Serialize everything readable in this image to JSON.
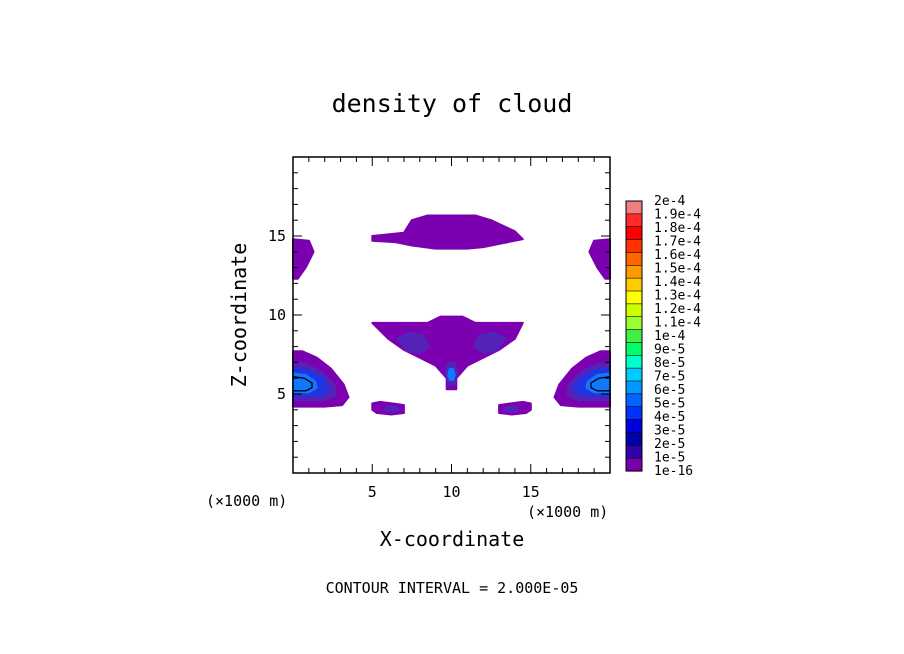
{
  "chart_data": {
    "type": "heatmap",
    "title": "density of cloud",
    "xlabel": "X-coordinate",
    "ylabel": "Z-coordinate",
    "x_unit": "(×1000 m)",
    "y_unit": "(×1000 m)",
    "xlim": [
      0,
      20
    ],
    "ylim": [
      0,
      20
    ],
    "x_ticks": [
      5,
      10,
      15
    ],
    "y_ticks": [
      5,
      10,
      15
    ],
    "footer": "CONTOUR INTERVAL = 2.000E-05",
    "colorbar": {
      "labels": [
        "2e-4",
        "1.9e-4",
        "1.8e-4",
        "1.7e-4",
        "1.6e-4",
        "1.5e-4",
        "1.4e-4",
        "1.3e-4",
        "1.2e-4",
        "1.1e-4",
        "1e-4",
        "9e-5",
        "8e-5",
        "7e-5",
        "6e-5",
        "5e-5",
        "4e-5",
        "3e-5",
        "2e-5",
        "1e-5",
        "1e-16"
      ],
      "colors": [
        "#f08080",
        "#ff2a2a",
        "#ff0000",
        "#ff3300",
        "#ff6600",
        "#ff9900",
        "#ffcc00",
        "#ffff00",
        "#ccff00",
        "#99ff33",
        "#44ee44",
        "#00ff66",
        "#00ffcc",
        "#00ccff",
        "#0099ff",
        "#0066ff",
        "#0033ff",
        "#0000dd",
        "#0000aa",
        "#3300aa",
        "#7700aa"
      ]
    },
    "regions": [
      {
        "name": "upper-center-cloud",
        "level": 0,
        "points": [
          [
            7.0,
            15.2
          ],
          [
            7.5,
            16.0
          ],
          [
            8.5,
            16.3
          ],
          [
            11.5,
            16.3
          ],
          [
            12.5,
            16.0
          ],
          [
            14.0,
            15.3
          ],
          [
            14.5,
            14.8
          ],
          [
            13.0,
            14.5
          ],
          [
            12.0,
            14.3
          ],
          [
            11.0,
            14.2
          ],
          [
            9.0,
            14.2
          ],
          [
            7.5,
            14.4
          ],
          [
            6.5,
            14.6
          ],
          [
            5.0,
            14.7
          ],
          [
            5.0,
            15.0
          ],
          [
            7.0,
            15.2
          ]
        ]
      },
      {
        "name": "upper-left-edge",
        "level": 0,
        "points": [
          [
            0,
            14.8
          ],
          [
            1.0,
            14.7
          ],
          [
            1.3,
            14.0
          ],
          [
            0.8,
            13.0
          ],
          [
            0.3,
            12.3
          ],
          [
            0,
            12.3
          ]
        ]
      },
      {
        "name": "upper-right-edge",
        "level": 0,
        "points": [
          [
            20,
            14.8
          ],
          [
            19.0,
            14.7
          ],
          [
            18.7,
            14.0
          ],
          [
            19.2,
            13.0
          ],
          [
            19.7,
            12.3
          ],
          [
            20,
            12.3
          ]
        ]
      },
      {
        "name": "middle-cloud",
        "level": 0,
        "points": [
          [
            5.0,
            9.5
          ],
          [
            8.5,
            9.5
          ],
          [
            9.3,
            9.9
          ],
          [
            10.7,
            9.9
          ],
          [
            11.5,
            9.5
          ],
          [
            14.5,
            9.5
          ],
          [
            14.0,
            8.5
          ],
          [
            13.0,
            7.8
          ],
          [
            12.0,
            7.3
          ],
          [
            11.0,
            6.8
          ],
          [
            10.3,
            6.0
          ],
          [
            10.3,
            5.3
          ],
          [
            9.7,
            5.3
          ],
          [
            9.7,
            6.0
          ],
          [
            9.0,
            6.8
          ],
          [
            8.0,
            7.3
          ],
          [
            7.0,
            7.8
          ],
          [
            6.0,
            8.5
          ],
          [
            5.0,
            9.5
          ]
        ]
      },
      {
        "name": "middle-left-lobe",
        "level": 1,
        "points": [
          [
            6.6,
            8.5
          ],
          [
            7.3,
            8.9
          ],
          [
            8.2,
            8.7
          ],
          [
            8.6,
            8.0
          ],
          [
            8.0,
            7.6
          ],
          [
            7.2,
            7.7
          ],
          [
            6.6,
            8.5
          ]
        ]
      },
      {
        "name": "middle-right-lobe",
        "level": 1,
        "points": [
          [
            13.4,
            8.5
          ],
          [
            12.7,
            8.9
          ],
          [
            11.8,
            8.7
          ],
          [
            11.4,
            8.0
          ],
          [
            12.0,
            7.6
          ],
          [
            12.8,
            7.7
          ],
          [
            13.4,
            8.5
          ]
        ]
      },
      {
        "name": "center-column",
        "level": 1,
        "points": [
          [
            9.8,
            7.0
          ],
          [
            10.2,
            7.0
          ],
          [
            10.4,
            6.3
          ],
          [
            10.2,
            5.6
          ],
          [
            9.8,
            5.6
          ],
          [
            9.6,
            6.3
          ],
          [
            9.8,
            7.0
          ]
        ]
      },
      {
        "name": "center-column-core",
        "level": 3,
        "points": [
          [
            9.9,
            6.6
          ],
          [
            10.1,
            6.6
          ],
          [
            10.2,
            6.2
          ],
          [
            10.1,
            5.9
          ],
          [
            9.9,
            5.9
          ],
          [
            9.8,
            6.2
          ],
          [
            9.9,
            6.6
          ]
        ]
      },
      {
        "name": "left-cloud",
        "level": 0,
        "points": [
          [
            0,
            7.7
          ],
          [
            0.6,
            7.7
          ],
          [
            1.5,
            7.3
          ],
          [
            2.4,
            6.6
          ],
          [
            3.2,
            5.6
          ],
          [
            3.5,
            4.8
          ],
          [
            3.1,
            4.3
          ],
          [
            2.0,
            4.2
          ],
          [
            0,
            4.2
          ]
        ]
      },
      {
        "name": "left-cloud-mid",
        "level": 1,
        "points": [
          [
            0,
            7.0
          ],
          [
            0.8,
            6.9
          ],
          [
            1.8,
            6.4
          ],
          [
            2.6,
            5.6
          ],
          [
            2.7,
            4.9
          ],
          [
            2.0,
            4.6
          ],
          [
            0,
            4.6
          ]
        ]
      },
      {
        "name": "left-cloud-inner",
        "level": 2,
        "points": [
          [
            0,
            6.6
          ],
          [
            1.0,
            6.5
          ],
          [
            1.9,
            6.0
          ],
          [
            2.3,
            5.3
          ],
          [
            1.8,
            4.9
          ],
          [
            0,
            4.9
          ]
        ]
      },
      {
        "name": "left-cloud-core",
        "level": 3,
        "points": [
          [
            0,
            6.3
          ],
          [
            0.8,
            6.2
          ],
          [
            1.4,
            5.8
          ],
          [
            1.5,
            5.4
          ],
          [
            1.0,
            5.1
          ],
          [
            0,
            5.1
          ]
        ]
      },
      {
        "name": "right-cloud",
        "level": 0,
        "points": [
          [
            20,
            7.7
          ],
          [
            19.4,
            7.7
          ],
          [
            18.5,
            7.3
          ],
          [
            17.6,
            6.6
          ],
          [
            16.8,
            5.6
          ],
          [
            16.5,
            4.8
          ],
          [
            16.9,
            4.3
          ],
          [
            18.0,
            4.2
          ],
          [
            20,
            4.2
          ]
        ]
      },
      {
        "name": "right-cloud-mid",
        "level": 1,
        "points": [
          [
            20,
            7.0
          ],
          [
            19.2,
            6.9
          ],
          [
            18.2,
            6.4
          ],
          [
            17.4,
            5.6
          ],
          [
            17.3,
            4.9
          ],
          [
            18.0,
            4.6
          ],
          [
            20,
            4.6
          ]
        ]
      },
      {
        "name": "right-cloud-inner",
        "level": 2,
        "points": [
          [
            20,
            6.6
          ],
          [
            19.0,
            6.5
          ],
          [
            18.1,
            6.0
          ],
          [
            17.7,
            5.3
          ],
          [
            18.2,
            4.9
          ],
          [
            20,
            4.9
          ]
        ]
      },
      {
        "name": "right-cloud-core",
        "level": 3,
        "points": [
          [
            20,
            6.3
          ],
          [
            19.2,
            6.2
          ],
          [
            18.6,
            5.8
          ],
          [
            18.5,
            5.4
          ],
          [
            19.0,
            5.1
          ],
          [
            20,
            5.1
          ]
        ]
      },
      {
        "name": "low-left-blob",
        "level": 0,
        "points": [
          [
            5.0,
            4.4
          ],
          [
            5.5,
            4.5
          ],
          [
            6.3,
            4.4
          ],
          [
            7.0,
            4.3
          ],
          [
            7.0,
            3.8
          ],
          [
            6.2,
            3.7
          ],
          [
            5.3,
            3.8
          ],
          [
            5.0,
            4.0
          ],
          [
            5.0,
            4.4
          ]
        ]
      },
      {
        "name": "low-left-blob-core",
        "level": 1,
        "points": [
          [
            5.9,
            4.2
          ],
          [
            6.5,
            4.2
          ],
          [
            6.7,
            4.0
          ],
          [
            6.5,
            3.9
          ],
          [
            5.9,
            3.9
          ],
          [
            5.8,
            4.0
          ],
          [
            5.9,
            4.2
          ]
        ]
      },
      {
        "name": "low-right-blob",
        "level": 0,
        "points": [
          [
            15.0,
            4.4
          ],
          [
            14.5,
            4.5
          ],
          [
            13.7,
            4.4
          ],
          [
            13.0,
            4.3
          ],
          [
            13.0,
            3.8
          ],
          [
            13.8,
            3.7
          ],
          [
            14.7,
            3.8
          ],
          [
            15.0,
            4.0
          ],
          [
            15.0,
            4.4
          ]
        ]
      },
      {
        "name": "low-right-blob-core",
        "level": 1,
        "points": [
          [
            14.1,
            4.2
          ],
          [
            13.5,
            4.2
          ],
          [
            13.3,
            4.0
          ],
          [
            13.5,
            3.9
          ],
          [
            14.1,
            3.9
          ],
          [
            14.2,
            4.0
          ],
          [
            14.1,
            4.2
          ]
        ]
      }
    ],
    "level_colors": [
      "#7b00b0",
      "#5522b8",
      "#2233e0",
      "#1177ff"
    ],
    "contour_lines": [
      {
        "name": "left-contour",
        "points": [
          [
            0,
            6.1
          ],
          [
            0.7,
            6.0
          ],
          [
            1.2,
            5.7
          ],
          [
            1.2,
            5.4
          ],
          [
            0.8,
            5.2
          ],
          [
            0,
            5.2
          ]
        ]
      },
      {
        "name": "right-contour",
        "points": [
          [
            20,
            6.1
          ],
          [
            19.3,
            6.0
          ],
          [
            18.8,
            5.7
          ],
          [
            18.8,
            5.4
          ],
          [
            19.2,
            5.2
          ],
          [
            20,
            5.2
          ]
        ]
      }
    ]
  }
}
